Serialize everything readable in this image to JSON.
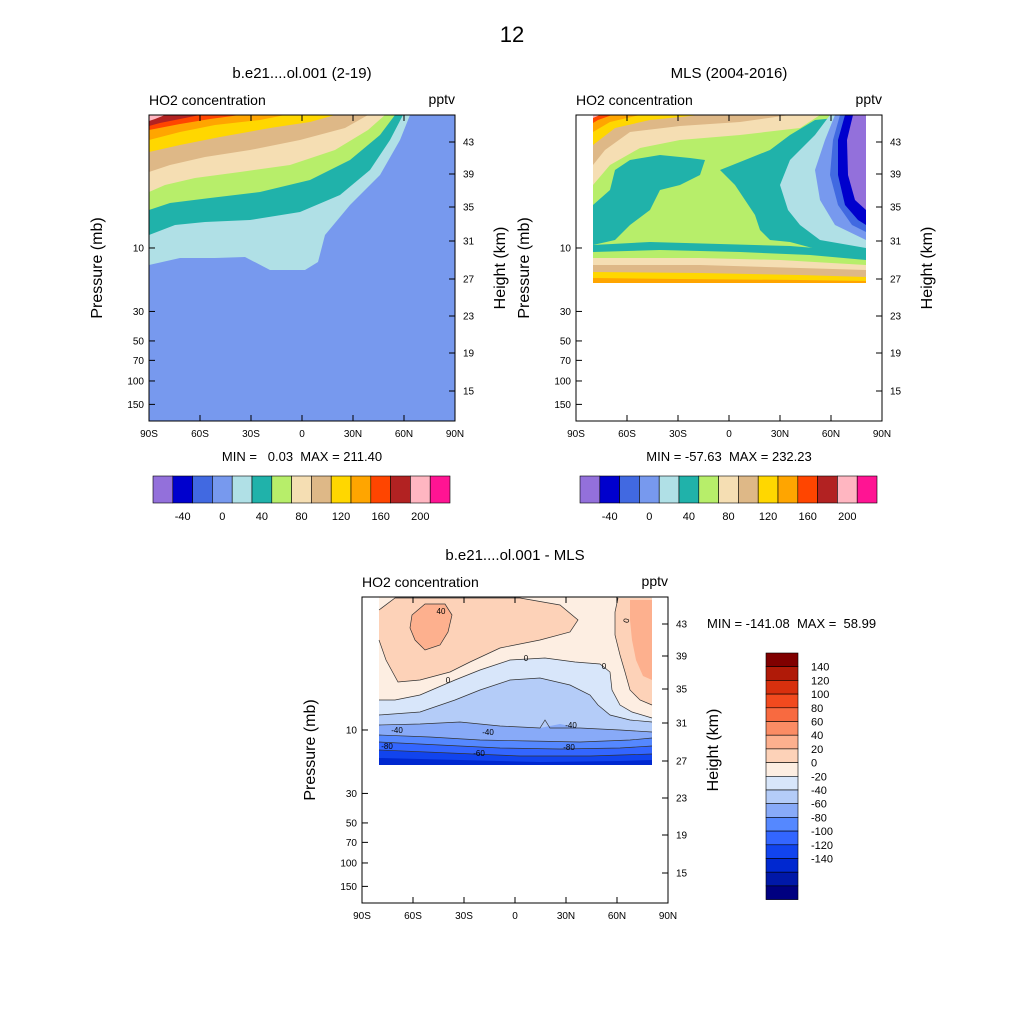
{
  "page_title": "12",
  "colors": {
    "left_palette": [
      "#9370DB",
      "#0000CD",
      "#4169E1",
      "#7799EE",
      "#B0E0E6",
      "#20B2AA",
      "#B7EE6A",
      "#F5DEB3",
      "#DEB887",
      "#FFD700",
      "#FFA500",
      "#FF4500",
      "#B22222",
      "#FFB6C1",
      "#FF1493"
    ],
    "diff_palette": [
      "#000080",
      "#0018A8",
      "#0028D0",
      "#1144EE",
      "#3366FF",
      "#5588FF",
      "#88AAF8",
      "#B4CCF8",
      "#D8E6FA",
      "#FDEEE2",
      "#FDD2B8",
      "#FDB08E",
      "#FB8C64",
      "#F86A40",
      "#F24A1E",
      "#D8300E",
      "#B01A08",
      "#800000"
    ]
  },
  "chart_data": [
    {
      "type": "contour",
      "id": "model",
      "title": "b.e21....ol.001 (2-19)",
      "left_label": "HO2 concentration",
      "right_label": "pptv",
      "ylabel": "Pressure (mb)",
      "y2label": "Height (km)",
      "x_ticks": [
        "90S",
        "60S",
        "30S",
        "0",
        "30N",
        "60N",
        "90N"
      ],
      "x_values": [
        -90,
        -60,
        -30,
        0,
        30,
        60,
        90
      ],
      "y_ticks": [
        "10",
        "30",
        "50",
        "70",
        "100",
        "150"
      ],
      "y_values": [
        10,
        30,
        50,
        70,
        100,
        150
      ],
      "y2_ticks": [
        "43",
        "39",
        "35",
        "31",
        "27",
        "23",
        "19",
        "15"
      ],
      "ylim": [
        1,
        200
      ],
      "stats": "MIN =   0.03  MAX = 211.40",
      "colorbar_labels": [
        "-40",
        "0",
        "40",
        "80",
        "120",
        "160",
        "200"
      ],
      "colorbar_levels": [
        -60,
        -40,
        -20,
        0,
        20,
        40,
        60,
        80,
        100,
        120,
        140,
        160,
        180,
        200,
        220
      ]
    },
    {
      "type": "contour",
      "id": "obs",
      "title": "MLS (2004-2016)",
      "left_label": "HO2 concentration",
      "right_label": "pptv",
      "ylabel": "Pressure (mb)",
      "y2label": "Height (km)",
      "x_ticks": [
        "90S",
        "60S",
        "30S",
        "0",
        "30N",
        "60N",
        "90N"
      ],
      "x_values": [
        -90,
        -60,
        -30,
        0,
        30,
        60,
        90
      ],
      "y_ticks": [
        "10",
        "30",
        "50",
        "70",
        "100",
        "150"
      ],
      "y_values": [
        10,
        30,
        50,
        70,
        100,
        150
      ],
      "y2_ticks": [
        "43",
        "39",
        "35",
        "31",
        "27",
        "23",
        "19",
        "15"
      ],
      "ylim": [
        1,
        200
      ],
      "stats": "MIN = -57.63  MAX = 232.23",
      "colorbar_labels": [
        "-40",
        "0",
        "40",
        "80",
        "120",
        "160",
        "200"
      ],
      "colorbar_levels": [
        -60,
        -40,
        -20,
        0,
        20,
        40,
        60,
        80,
        100,
        120,
        140,
        160,
        180,
        200,
        220
      ]
    },
    {
      "type": "contour",
      "id": "diff",
      "title": "b.e21....ol.001 - MLS",
      "left_label": "HO2 concentration",
      "right_label": "pptv",
      "ylabel": "Pressure (mb)",
      "y2label": "Height (km)",
      "x_ticks": [
        "90S",
        "60S",
        "30S",
        "0",
        "30N",
        "60N",
        "90N"
      ],
      "x_values": [
        -90,
        -60,
        -30,
        0,
        30,
        60,
        90
      ],
      "y_ticks": [
        "10",
        "30",
        "50",
        "70",
        "100",
        "150"
      ],
      "y_values": [
        10,
        30,
        50,
        70,
        100,
        150
      ],
      "y2_ticks": [
        "43",
        "39",
        "35",
        "31",
        "27",
        "23",
        "19",
        "15"
      ],
      "ylim": [
        1,
        200
      ],
      "stats": "MIN = -141.08  MAX =  58.99",
      "colorbar_labels": [
        "140",
        "120",
        "100",
        "80",
        "60",
        "40",
        "20",
        "0",
        "-20",
        "-40",
        "-60",
        "-80",
        "-100",
        "-120",
        "-140"
      ],
      "contour_labels": [
        "40",
        "0",
        "0",
        "0",
        "0",
        "-40",
        "-40",
        "-40",
        "-80",
        "-80",
        "-60"
      ]
    }
  ]
}
